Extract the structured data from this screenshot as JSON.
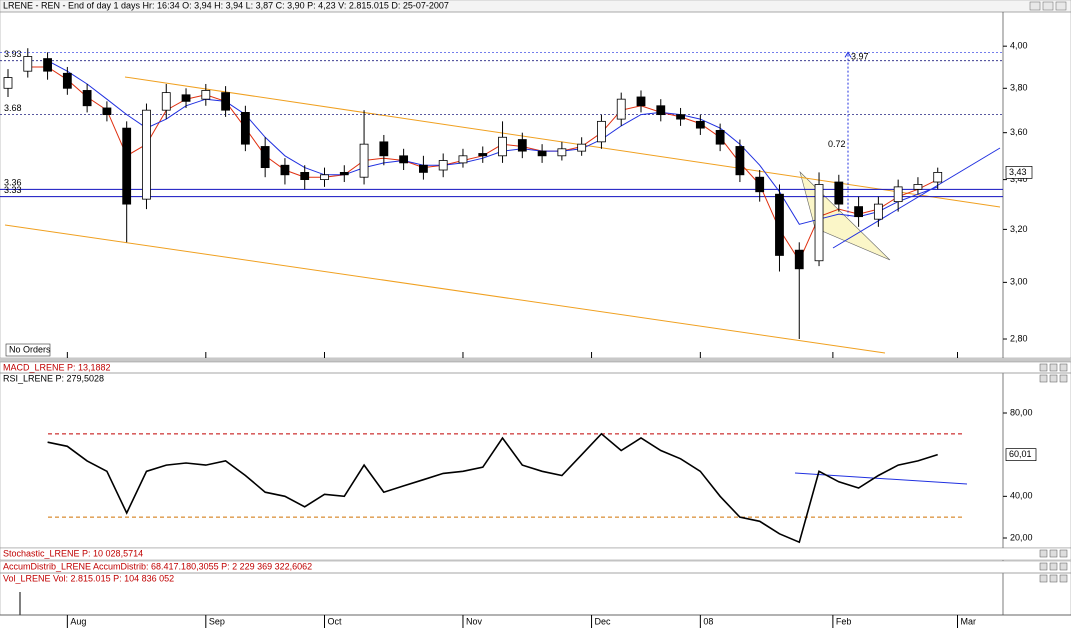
{
  "window_title": "LRENE - REN - End of day 1 days Hr: 16:34 O: 3,94 H: 3,94 L: 3,87 C: 3,90 P: 4,23 V: 2.815.015 D: 25-07-2007",
  "panels": {
    "macd": "MACD_LRENE  P: 13,1882",
    "stochastic": "Stochastic_LRENE  P: 10 028,5714",
    "accum": "AccumDistrib_LRENE  AccumDistrib: 68.417.180,3055  P: 2 229 369 322,6062",
    "volume": "Vol_LRENE  Vol: 2.815.015  P: 104 836 052"
  },
  "order_status": "No Orders",
  "chart_data": [
    {
      "type": "candlestick",
      "log": true,
      "xlim": [
        0,
        50.3
      ],
      "xticks": [
        {
          "value": 3,
          "label": "Aug"
        },
        {
          "value": 10,
          "label": "Sep"
        },
        {
          "value": 16,
          "label": "Oct"
        },
        {
          "value": 23,
          "label": "Nov"
        },
        {
          "value": 29.5,
          "label": "Dec"
        },
        {
          "value": 35,
          "label": "08"
        },
        {
          "value": 41.7,
          "label": "Feb"
        },
        {
          "value": 48,
          "label": "Mar"
        }
      ],
      "ylim": [
        2.736,
        4.17
      ],
      "yticks": [
        {
          "value": 2.8,
          "label": "2,80"
        },
        {
          "value": 3.0,
          "label": "3,00"
        },
        {
          "value": 3.2,
          "label": "3,20"
        },
        {
          "value": 3.4,
          "label": "3,40"
        },
        {
          "value": 3.6,
          "label": "3,60"
        },
        {
          "value": 3.8,
          "label": "3,80"
        },
        {
          "value": 4.0,
          "label": "4,00"
        }
      ],
      "open": [
        3.8,
        3.88,
        3.94,
        3.87,
        3.79,
        3.71,
        3.62,
        3.32,
        3.7,
        3.77,
        3.75,
        3.78,
        3.69,
        3.54,
        3.46,
        3.43,
        3.4,
        3.43,
        3.41,
        3.56,
        3.5,
        3.46,
        3.44,
        3.47,
        3.51,
        3.5,
        3.57,
        3.52,
        3.5,
        3.52,
        3.56,
        3.66,
        3.76,
        3.72,
        3.68,
        3.65,
        3.61,
        3.54,
        3.41,
        3.34,
        3.12,
        3.08,
        3.39,
        3.29,
        3.24,
        3.31,
        3.36,
        3.39
      ],
      "high": [
        3.89,
        3.99,
        3.97,
        3.9,
        3.82,
        3.74,
        3.65,
        3.73,
        3.82,
        3.8,
        3.82,
        3.81,
        3.72,
        3.58,
        3.49,
        3.46,
        3.45,
        3.46,
        3.7,
        3.59,
        3.53,
        3.5,
        3.51,
        3.53,
        3.54,
        3.65,
        3.6,
        3.55,
        3.56,
        3.58,
        3.68,
        3.78,
        3.79,
        3.75,
        3.71,
        3.68,
        3.64,
        3.57,
        3.44,
        3.38,
        3.15,
        3.43,
        3.42,
        3.33,
        3.33,
        3.4,
        3.41,
        3.45
      ],
      "low": [
        3.76,
        3.85,
        3.84,
        3.77,
        3.69,
        3.65,
        3.15,
        3.28,
        3.66,
        3.71,
        3.72,
        3.67,
        3.52,
        3.41,
        3.38,
        3.36,
        3.37,
        3.39,
        3.38,
        3.46,
        3.44,
        3.4,
        3.41,
        3.45,
        3.47,
        3.47,
        3.49,
        3.47,
        3.48,
        3.5,
        3.53,
        3.63,
        3.69,
        3.65,
        3.63,
        3.59,
        3.52,
        3.39,
        3.31,
        3.04,
        2.8,
        3.06,
        3.27,
        3.21,
        3.21,
        3.27,
        3.34,
        3.36
      ],
      "close": [
        3.85,
        3.95,
        3.88,
        3.8,
        3.72,
        3.68,
        3.3,
        3.7,
        3.78,
        3.74,
        3.79,
        3.7,
        3.55,
        3.45,
        3.42,
        3.4,
        3.42,
        3.42,
        3.55,
        3.5,
        3.47,
        3.43,
        3.48,
        3.5,
        3.5,
        3.58,
        3.52,
        3.5,
        3.53,
        3.55,
        3.65,
        3.75,
        3.72,
        3.68,
        3.66,
        3.62,
        3.55,
        3.42,
        3.35,
        3.1,
        3.05,
        3.38,
        3.3,
        3.25,
        3.3,
        3.37,
        3.38,
        3.43
      ],
      "value_labels": [
        null,
        null,
        null,
        null,
        null,
        null,
        null,
        null,
        null,
        null,
        null,
        null,
        null,
        null,
        null,
        null,
        null,
        null,
        null,
        null,
        null,
        null,
        null,
        null,
        null,
        null,
        null,
        null,
        null,
        null,
        null,
        null,
        null,
        null,
        null,
        null,
        null,
        null,
        null,
        null,
        null,
        null,
        null,
        null,
        null,
        null,
        null,
        "3,43"
      ],
      "overlays": [
        {
          "color": "#e03010",
          "values": [
            null,
            3.9,
            3.9,
            3.84,
            3.76,
            3.7,
            3.5,
            3.55,
            3.7,
            3.75,
            3.77,
            3.74,
            3.62,
            3.5,
            3.44,
            3.41,
            3.41,
            3.42,
            3.48,
            3.49,
            3.48,
            3.45,
            3.46,
            3.48,
            3.5,
            3.55,
            3.54,
            3.52,
            3.52,
            3.54,
            3.6,
            3.7,
            3.72,
            3.69,
            3.67,
            3.64,
            3.58,
            3.47,
            3.38,
            3.2,
            3.08,
            3.25,
            3.28,
            3.26,
            3.28,
            3.33,
            3.36,
            3.4
          ]
        },
        {
          "color": "#2030e0",
          "values": [
            null,
            null,
            3.93,
            3.88,
            3.82,
            3.75,
            3.68,
            3.62,
            3.66,
            3.72,
            3.75,
            3.74,
            3.68,
            3.58,
            3.5,
            3.45,
            3.42,
            3.42,
            3.45,
            3.47,
            3.48,
            3.46,
            3.46,
            3.47,
            3.49,
            3.52,
            3.53,
            3.52,
            3.52,
            3.53,
            3.57,
            3.63,
            3.68,
            3.69,
            3.68,
            3.66,
            3.62,
            3.55,
            3.46,
            3.35,
            3.22,
            3.24,
            3.26,
            3.25,
            3.27,
            3.31,
            3.34,
            3.37
          ]
        }
      ],
      "levels": [
        {
          "value": 3.93,
          "style": "dotted",
          "color": "#202080"
        },
        {
          "value": 3.68,
          "style": "dotted",
          "color": "#202080"
        },
        {
          "value": 3.36,
          "style": "solid",
          "color": "#1010c0"
        },
        {
          "value": 3.33,
          "style": "solid",
          "color": "#1010c0"
        }
      ],
      "target": 3.97,
      "move": 0.72
    },
    {
      "type": "line",
      "title": "RSI_LRENE  P: 279,5028",
      "xlim": [
        0,
        50.3
      ],
      "ylim": [
        15.2,
        99.2
      ],
      "yticks": [
        {
          "value": 20,
          "label": "20,00"
        },
        {
          "value": 40,
          "label": "40,00"
        },
        {
          "value": 80,
          "label": "80,00"
        }
      ],
      "color": "#000000",
      "values": [
        null,
        null,
        66,
        64,
        57,
        52,
        32,
        52,
        55,
        56,
        55,
        57,
        50,
        42,
        40,
        35,
        41,
        40,
        55,
        42,
        45,
        48,
        51,
        52,
        54,
        68,
        55,
        52,
        50,
        60,
        70,
        62,
        68,
        62,
        58,
        52,
        40,
        30,
        28,
        22,
        18,
        52,
        47,
        44,
        50,
        55,
        57,
        60.01
      ],
      "value_labels": [
        null,
        null,
        null,
        null,
        null,
        null,
        null,
        null,
        null,
        null,
        null,
        null,
        null,
        null,
        null,
        null,
        null,
        null,
        null,
        null,
        null,
        null,
        null,
        null,
        null,
        null,
        null,
        null,
        null,
        null,
        null,
        null,
        null,
        null,
        null,
        null,
        null,
        null,
        null,
        null,
        null,
        null,
        null,
        null,
        null,
        null,
        null,
        "60,01"
      ],
      "levels": [
        {
          "value": 70,
          "color": "#c00000"
        },
        {
          "value": 30,
          "color": "#d07000"
        }
      ]
    }
  ]
}
